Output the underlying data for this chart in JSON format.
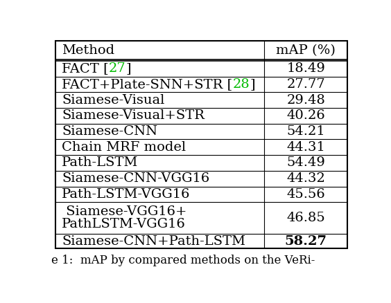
{
  "col_header_method": "Method",
  "col_header_map": "mAP (%)",
  "rows": [
    {
      "line1": "FACT [",
      "ref1": "27",
      "line1b": "]",
      "line2": "",
      "map": "18.49",
      "bold_map": false,
      "tall": false
    },
    {
      "line1": "FACT+Plate-SNN+STR [",
      "ref1": "28",
      "line1b": "]",
      "line2": "",
      "map": "27.77",
      "bold_map": false,
      "tall": false
    },
    {
      "line1": "Siamese-Visual",
      "ref1": "",
      "line1b": "",
      "line2": "",
      "map": "29.48",
      "bold_map": false,
      "tall": false
    },
    {
      "line1": "Siamese-Visual+STR",
      "ref1": "",
      "line1b": "",
      "line2": "",
      "map": "40.26",
      "bold_map": false,
      "tall": false
    },
    {
      "line1": "Siamese-CNN",
      "ref1": "",
      "line1b": "",
      "line2": "",
      "map": "54.21",
      "bold_map": false,
      "tall": false
    },
    {
      "line1": "Chain MRF model",
      "ref1": "",
      "line1b": "",
      "line2": "",
      "map": "44.31",
      "bold_map": false,
      "tall": false
    },
    {
      "line1": "Path-LSTM",
      "ref1": "",
      "line1b": "",
      "line2": "",
      "map": "54.49",
      "bold_map": false,
      "tall": false
    },
    {
      "line1": "Siamese-CNN-VGG16",
      "ref1": "",
      "line1b": "",
      "line2": "",
      "map": "44.32",
      "bold_map": false,
      "tall": false
    },
    {
      "line1": "Path-LSTM-VGG16",
      "ref1": "",
      "line1b": "",
      "line2": "",
      "map": "45.56",
      "bold_map": false,
      "tall": false
    },
    {
      "line1": " Siamese-VGG16+",
      "ref1": "",
      "line1b": "",
      "line2": "PathLSTM-VGG16",
      "map": "46.85",
      "bold_map": false,
      "tall": true
    },
    {
      "line1": "Siamese-CNN+Path-LSTM",
      "ref1": "",
      "line1b": "",
      "line2": "",
      "map": "58.27",
      "bold_map": true,
      "tall": false
    }
  ],
  "green_color": "#00bb00",
  "black_color": "#000000",
  "bg_color": "#ffffff",
  "font_size": 14,
  "caption_text": "e 1:  mAP by compared methods on the VeRi-",
  "caption_font_size": 12
}
